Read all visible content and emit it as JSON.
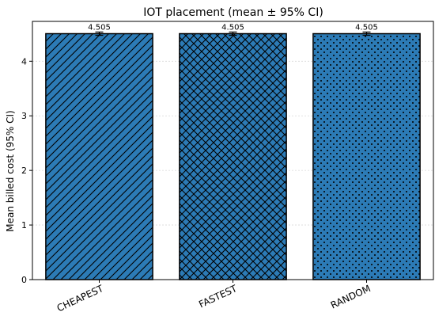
{
  "chart_data": {
    "type": "bar",
    "title": "IOT placement (mean ± 95% CI)",
    "xlabel": "",
    "ylabel": "Mean billed cost (95% CI)",
    "categories": [
      "CHEAPEST",
      "FASTEST",
      "RANDOM"
    ],
    "values": [
      4.505,
      4.505,
      4.505
    ],
    "value_labels": [
      "4.505",
      "4.505",
      "4.505"
    ],
    "ci_halfwidth": [
      0.03,
      0.03,
      0.03
    ],
    "patterns": [
      "diagonal-hatch",
      "cross-hatch",
      "dots"
    ],
    "bar_color": "#2c7bb6",
    "edge_color": "#000000",
    "ylim": [
      0,
      4.73
    ],
    "yticks": [
      0,
      1,
      2,
      3,
      4
    ],
    "ytick_labels": [
      "0",
      "1",
      "2",
      "3",
      "4"
    ],
    "grid": "horizontal",
    "legend": "none"
  }
}
